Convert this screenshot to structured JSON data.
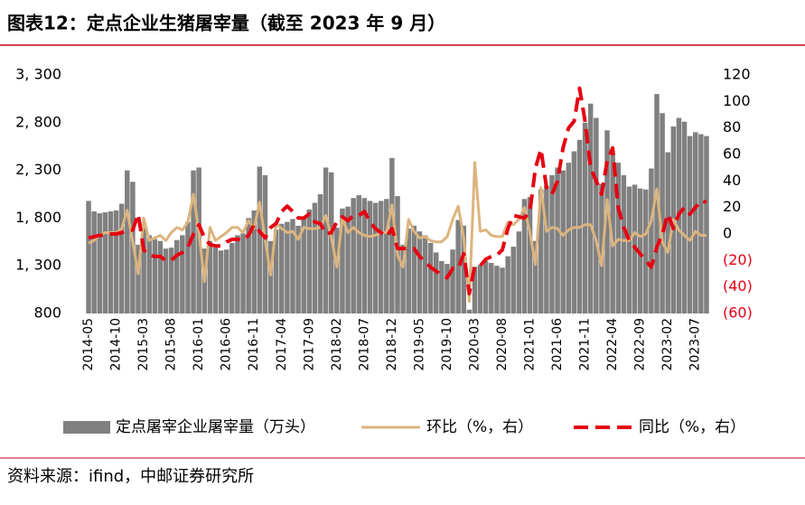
{
  "chart_data": {
    "type": "bar-line",
    "title": "图表12：定点企业生猪屠宰量（截至 2023 年 9 月）",
    "source": "资料来源：ifind，中邮证券研究所",
    "categories": [
      "2014-05",
      null,
      null,
      null,
      null,
      "2014-10",
      null,
      null,
      null,
      null,
      "2015-03",
      null,
      null,
      null,
      null,
      "2015-08",
      null,
      null,
      null,
      null,
      "2016-01",
      null,
      null,
      null,
      null,
      "2016-06",
      null,
      null,
      null,
      null,
      "2016-11",
      null,
      null,
      null,
      null,
      "2017-04",
      null,
      null,
      null,
      null,
      "2017-09",
      null,
      null,
      null,
      null,
      "2018-02",
      null,
      null,
      null,
      null,
      "2018-07",
      null,
      null,
      null,
      null,
      "2018-12",
      null,
      null,
      null,
      null,
      "2019-05",
      null,
      null,
      null,
      null,
      "2019-10",
      null,
      null,
      null,
      null,
      "2020-03",
      null,
      null,
      null,
      null,
      "2020-08",
      null,
      null,
      null,
      null,
      "2021-01",
      null,
      null,
      null,
      null,
      "2021-06",
      null,
      null,
      null,
      null,
      "2021-11",
      null,
      null,
      null,
      null,
      "2022-04",
      null,
      null,
      null,
      null,
      "2022-09",
      null,
      null,
      null,
      null,
      "2023-02",
      null,
      null,
      null,
      null,
      "2023-07",
      null,
      null
    ],
    "series": [
      {
        "name": "定点屠宰企业屠宰量（万头）",
        "color": "#808080",
        "axis": "y",
        "values": [
          1980,
          1870,
          1850,
          1860,
          1870,
          1880,
          1950,
          2300,
          2180,
          1520,
          1700,
          1620,
          1580,
          1560,
          1480,
          1490,
          1570,
          1620,
          1760,
          2300,
          2330,
          1480,
          1560,
          1490,
          1460,
          1470,
          1540,
          1620,
          1640,
          1800,
          1880,
          2340,
          2250,
          1560,
          1680,
          1740,
          1760,
          1790,
          1720,
          1810,
          1890,
          1960,
          2050,
          2330,
          2280,
          1700,
          1900,
          1920,
          2010,
          2040,
          2010,
          1980,
          1960,
          1980,
          2000,
          2430,
          2030,
          1520,
          1690,
          1720,
          1660,
          1620,
          1540,
          1440,
          1350,
          1320,
          1470,
          1780,
          1720,
          840,
          1290,
          1310,
          1350,
          1330,
          1300,
          1280,
          1400,
          1500,
          1660,
          2000,
          2020,
          1560,
          2100,
          2140,
          2250,
          2330,
          2300,
          2380,
          2500,
          2620,
          2800,
          3000,
          2850,
          2160,
          2720,
          2480,
          2380,
          2250,
          2130,
          2150,
          2110,
          2100,
          2320,
          3100,
          2900,
          2490,
          2760,
          2850,
          2810,
          2660,
          2700,
          2680,
          2660
        ]
      },
      {
        "name": "环比（%，右）",
        "color": "#dcb47e",
        "axis": "y2",
        "values": [
          -7,
          -5,
          -1,
          1,
          1,
          1,
          4,
          18,
          -6,
          -30,
          12,
          -5,
          -3,
          -1,
          -5,
          1,
          5,
          3,
          9,
          30,
          1,
          -36,
          5,
          -5,
          -2,
          1,
          5,
          5,
          1,
          10,
          4,
          24,
          -4,
          -31,
          8,
          4,
          1,
          2,
          -4,
          5,
          4,
          4,
          5,
          14,
          -2,
          -25,
          12,
          1,
          5,
          1,
          -1,
          -2,
          -1,
          1,
          1,
          22,
          -16,
          -25,
          11,
          2,
          -3,
          -2,
          -5,
          -6,
          -6,
          -2,
          11,
          21,
          -3,
          -51,
          54,
          2,
          3,
          -1,
          -2,
          -2,
          9,
          7,
          11,
          20,
          1,
          -23,
          35,
          2,
          5,
          4,
          -1,
          3,
          5,
          5,
          7,
          7,
          -5,
          -24,
          26,
          -9,
          -4,
          -5,
          -5,
          1,
          -2,
          0,
          10,
          34,
          -6,
          -14,
          11,
          3,
          -1,
          -5,
          2,
          -1,
          -1
        ]
      },
      {
        "name": "同比（%，右）",
        "color": "#e60012",
        "axis": "y2",
        "dashed": true,
        "values": [
          -3,
          -2,
          -1,
          -1,
          0,
          0,
          1,
          3,
          3,
          15,
          -12,
          -16,
          -17,
          -17,
          -20,
          -20,
          -16,
          -14,
          -10,
          0,
          7,
          -3,
          -8,
          -9,
          -9,
          -6,
          -4,
          -4,
          -5,
          -1,
          7,
          2,
          -3,
          5,
          8,
          17,
          21,
          17,
          12,
          12,
          15,
          9,
          8,
          0,
          1,
          9,
          13,
          10,
          14,
          14,
          17,
          9,
          4,
          1,
          -2,
          4,
          -11,
          -11,
          -11,
          -11,
          -17,
          -21,
          -25,
          -28,
          -31,
          -33,
          -26,
          -26,
          -15,
          -45,
          -24,
          -24,
          -19,
          -17,
          -16,
          -12,
          4,
          14,
          13,
          12,
          17,
          50,
          64,
          35,
          30,
          40,
          65,
          80,
          85,
          110,
          85,
          50,
          40,
          30,
          55,
          65,
          20,
          5,
          -5,
          -10,
          -15,
          -20,
          -25,
          -10,
          0,
          15,
          4,
          15,
          20,
          15,
          20,
          25,
          24
        ]
      }
    ],
    "ylim": [
      800,
      3300
    ],
    "yticks": [
      {
        "value": 800,
        "label": "800"
      },
      {
        "value": 1300,
        "label": "1, 300"
      },
      {
        "value": 1800,
        "label": "1, 800"
      },
      {
        "value": 2300,
        "label": "2, 300"
      },
      {
        "value": 2800,
        "label": "2, 800"
      },
      {
        "value": 3300,
        "label": "3, 300"
      }
    ],
    "y2lim": [
      -60,
      120
    ],
    "y2ticks": [
      {
        "value": -60,
        "label": "(60)"
      },
      {
        "value": -40,
        "label": "(40)"
      },
      {
        "value": -20,
        "label": "(20)"
      },
      0,
      20,
      40,
      60,
      80,
      100,
      120
    ]
  }
}
